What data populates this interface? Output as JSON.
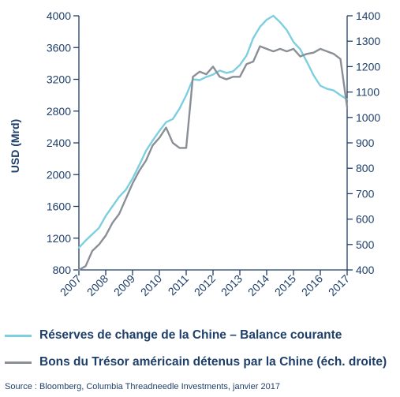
{
  "chart_data": {
    "type": "line",
    "title": "",
    "xlabel": "",
    "ylabel": "USD (Mrd)",
    "y2label": "",
    "x_tick_labels": [
      "2007",
      "2008",
      "2009",
      "2010",
      "2011",
      "2012",
      "2013",
      "2014",
      "2015",
      "2016",
      "2017"
    ],
    "y_tick_labels": [
      "800",
      "1200",
      "1600",
      "2000",
      "2400",
      "2800",
      "3200",
      "3600",
      "4000"
    ],
    "y2_tick_labels": [
      "400",
      "500",
      "600",
      "700",
      "800",
      "900",
      "1000",
      "1100",
      "1200",
      "1300",
      "1400"
    ],
    "xlim": [
      2007,
      2017
    ],
    "ylim": [
      800,
      4000
    ],
    "y2lim": [
      400,
      1400
    ],
    "grid": false,
    "legend_position": "bottom",
    "series": [
      {
        "name": "Réserves de change de la Chine – Balance courante",
        "axis": "left",
        "color": "#7dcfe0",
        "x": [
          2007.0,
          2007.25,
          2007.5,
          2007.75,
          2008.0,
          2008.25,
          2008.5,
          2008.75,
          2009.0,
          2009.25,
          2009.5,
          2009.75,
          2010.0,
          2010.25,
          2010.5,
          2010.75,
          2011.0,
          2011.25,
          2011.5,
          2011.75,
          2012.0,
          2012.25,
          2012.5,
          2012.75,
          2013.0,
          2013.25,
          2013.5,
          2013.75,
          2014.0,
          2014.25,
          2014.5,
          2014.75,
          2015.0,
          2015.25,
          2015.5,
          2015.75,
          2016.0,
          2016.25,
          2016.5,
          2016.75,
          2017.0
        ],
        "y": [
          1080,
          1170,
          1250,
          1330,
          1480,
          1600,
          1720,
          1810,
          1950,
          2120,
          2300,
          2430,
          2550,
          2660,
          2700,
          2830,
          3000,
          3200,
          3190,
          3230,
          3260,
          3310,
          3280,
          3300,
          3380,
          3500,
          3720,
          3860,
          3950,
          4000,
          3920,
          3820,
          3670,
          3580,
          3420,
          3250,
          3120,
          3080,
          3060,
          3000,
          2950
        ]
      },
      {
        "name": "Bons du Trésor américain détenus par la Chine (éch. droite)",
        "axis": "right",
        "color": "#8a8f96",
        "x": [
          2007.0,
          2007.25,
          2007.5,
          2007.75,
          2008.0,
          2008.25,
          2008.5,
          2008.75,
          2009.0,
          2009.25,
          2009.5,
          2009.75,
          2010.0,
          2010.25,
          2010.5,
          2010.75,
          2011.0,
          2011.25,
          2011.5,
          2011.75,
          2012.0,
          2012.25,
          2012.5,
          2012.75,
          2013.0,
          2013.25,
          2013.5,
          2013.75,
          2014.0,
          2014.25,
          2014.5,
          2014.75,
          2015.0,
          2015.25,
          2015.5,
          2015.75,
          2016.0,
          2016.25,
          2016.5,
          2016.75,
          2017.0
        ],
        "y": [
          400,
          415,
          475,
          500,
          535,
          585,
          620,
          680,
          740,
          790,
          830,
          890,
          920,
          960,
          900,
          880,
          880,
          1160,
          1180,
          1170,
          1200,
          1160,
          1150,
          1160,
          1160,
          1210,
          1220,
          1280,
          1270,
          1260,
          1270,
          1260,
          1270,
          1240,
          1250,
          1255,
          1270,
          1260,
          1250,
          1230,
          1040
        ]
      }
    ],
    "source_text": "Source : Bloomberg, Columbia Threadneedle Investments, janvier 2017"
  }
}
